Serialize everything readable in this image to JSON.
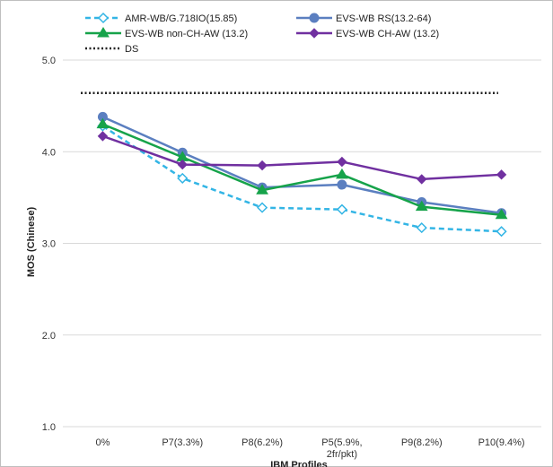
{
  "chart_data": {
    "type": "line",
    "title": "",
    "xlabel": "IBM Profiles",
    "ylabel": "MOS (Chinese)",
    "ylim": [
      1.0,
      5.0
    ],
    "yticks": [
      "1.0",
      "2.0",
      "3.0",
      "4.0",
      "5.0"
    ],
    "categories": [
      "0%",
      "P7(3.3%)",
      "P8(6.2%)",
      "P5(5.9%,\n2fr/pkt)",
      "P9(8.2%)",
      "P10(9.4%)"
    ],
    "grid": true,
    "legend_position": "top",
    "series": [
      {
        "name": "AMR-WB/G.718IO(15.85)",
        "color": "#33b5e5",
        "dash": "dashed",
        "marker": "open-diamond",
        "values": [
          4.28,
          3.71,
          3.39,
          3.37,
          3.17,
          3.13
        ]
      },
      {
        "name": "EVS-WB RS(13.2-64)",
        "color": "#5b7fc0",
        "dash": "solid",
        "marker": "circle",
        "values": [
          4.38,
          3.99,
          3.61,
          3.64,
          3.45,
          3.33
        ]
      },
      {
        "name": "EVS-WB non-CH-AW (13.2)",
        "color": "#16a34a",
        "dash": "solid",
        "marker": "triangle",
        "values": [
          4.3,
          3.94,
          3.58,
          3.75,
          3.4,
          3.31
        ]
      },
      {
        "name": "EVS-WB CH-AW (13.2)",
        "color": "#7030a0",
        "dash": "solid",
        "marker": "diamond",
        "values": [
          4.17,
          3.86,
          3.85,
          3.89,
          3.7,
          3.75
        ]
      },
      {
        "name": "DS",
        "color": "#222222",
        "dash": "dotted",
        "marker": "none",
        "values": [
          4.64,
          4.64,
          4.64,
          4.64,
          4.64,
          4.64
        ]
      }
    ]
  }
}
